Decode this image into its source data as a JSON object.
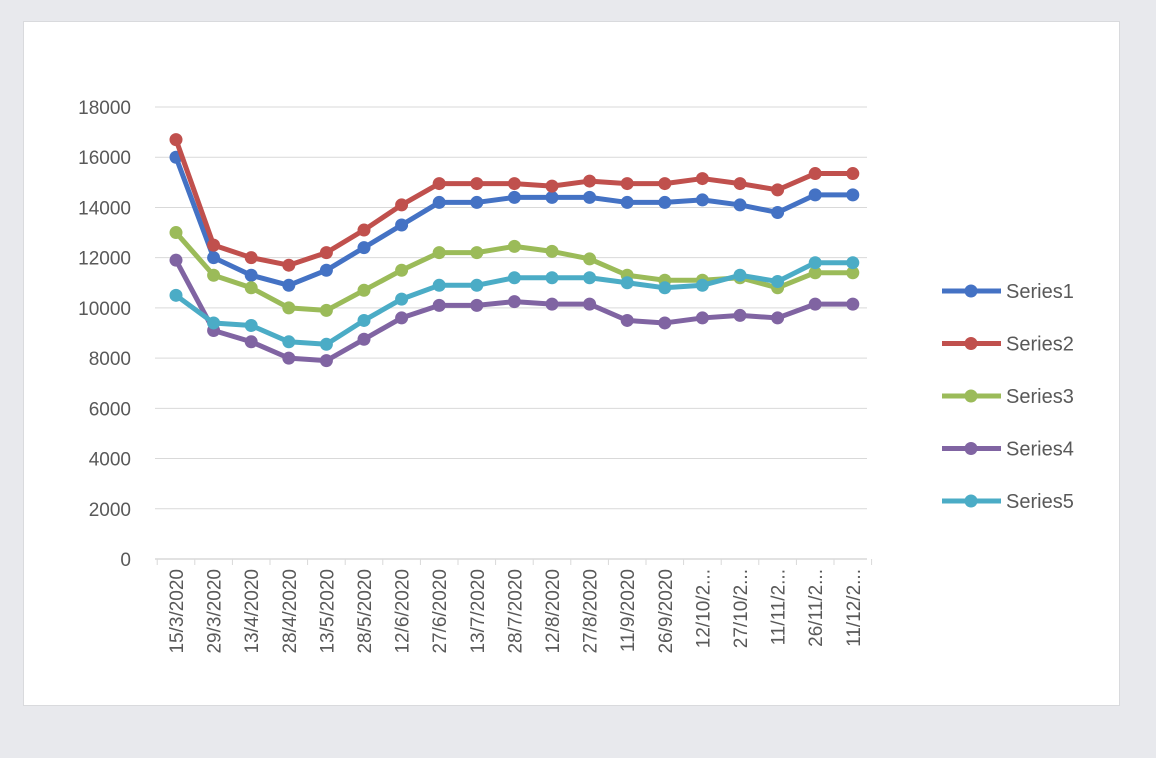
{
  "chart_data": {
    "type": "line",
    "title": "",
    "xlabel": "",
    "ylabel": "",
    "ylim": [
      0,
      18000
    ],
    "yticks": [
      0,
      2000,
      4000,
      6000,
      8000,
      10000,
      12000,
      14000,
      16000,
      18000
    ],
    "grid": true,
    "legend_position": "right",
    "categories": [
      "15/3/2020",
      "29/3/2020",
      "13/4/2020",
      "28/4/2020",
      "13/5/2020",
      "28/5/2020",
      "12/6/2020",
      "27/6/2020",
      "13/7/2020",
      "28/7/2020",
      "12/8/2020",
      "27/8/2020",
      "11/9/2020",
      "26/9/2020",
      "12/10/2...",
      "27/10/2...",
      "11/11/2...",
      "26/11/2...",
      "11/12/2..."
    ],
    "series": [
      {
        "name": "Series1",
        "color": "#4472c4",
        "values": [
          16000,
          12000,
          11300,
          10900,
          11500,
          12400,
          13300,
          14200,
          14200,
          14400,
          14400,
          14400,
          14200,
          14200,
          14300,
          14100,
          13800,
          14500,
          14500
        ]
      },
      {
        "name": "Series2",
        "color": "#c0504d",
        "values": [
          16700,
          12500,
          12000,
          11700,
          12200,
          13100,
          14100,
          14950,
          14950,
          14950,
          14850,
          15050,
          14950,
          14950,
          15150,
          14950,
          14700,
          15350,
          15350
        ]
      },
      {
        "name": "Series3",
        "color": "#9bbb59",
        "values": [
          13000,
          11300,
          10800,
          10000,
          9900,
          10700,
          11500,
          12200,
          12200,
          12450,
          12250,
          11950,
          11300,
          11100,
          11100,
          11200,
          10800,
          11400,
          11400
        ]
      },
      {
        "name": "Series4",
        "color": "#8064a2",
        "values": [
          11900,
          9100,
          8650,
          8000,
          7900,
          8750,
          9600,
          10100,
          10100,
          10250,
          10150,
          10150,
          9500,
          9400,
          9600,
          9700,
          9600,
          10150,
          10150
        ]
      },
      {
        "name": "Series5",
        "color": "#4bacc6",
        "values": [
          10500,
          9400,
          9300,
          8650,
          8550,
          9500,
          10350,
          10900,
          10900,
          11200,
          11200,
          11200,
          11000,
          10800,
          10900,
          11300,
          11050,
          11800,
          11800
        ]
      }
    ]
  }
}
